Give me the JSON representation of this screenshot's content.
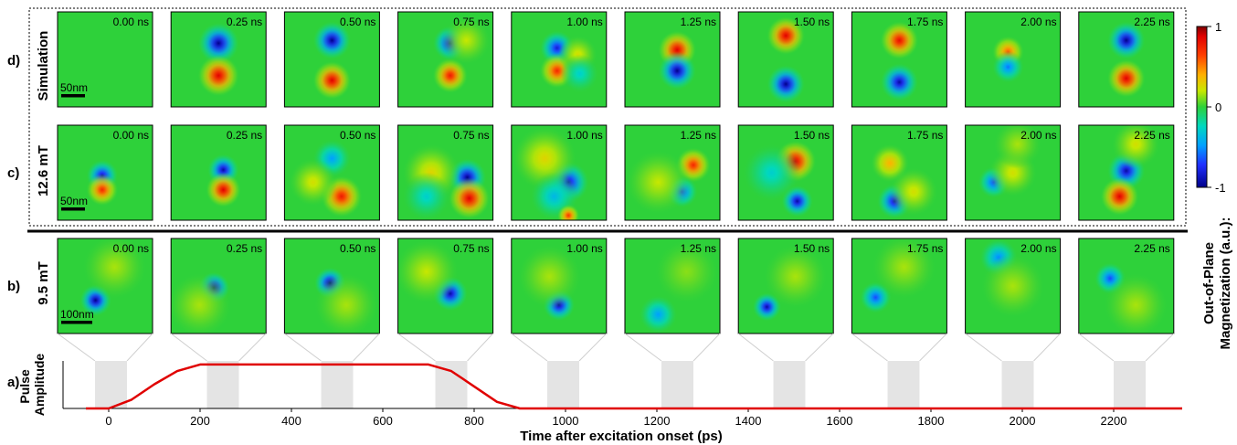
{
  "chart_data": [
    {
      "type": "heatmap",
      "panel": "d)",
      "row_label": "Simulation",
      "scale_bar": "50nm",
      "frames": [
        "0.00 ns",
        "0.25 ns",
        "0.50 ns",
        "0.75 ns",
        "1.00 ns",
        "1.25 ns",
        "1.50 ns",
        "1.75 ns",
        "2.00 ns",
        "2.25 ns"
      ]
    },
    {
      "type": "heatmap",
      "panel": "c)",
      "row_label": "12.6 mT",
      "scale_bar": "50nm",
      "frames": [
        "0.00 ns",
        "0.25 ns",
        "0.50 ns",
        "0.75 ns",
        "1.00 ns",
        "1.25 ns",
        "1.50 ns",
        "1.75 ns",
        "2.00 ns",
        "2.25 ns"
      ]
    },
    {
      "type": "heatmap",
      "panel": "b)",
      "row_label": "9.5 mT",
      "scale_bar": "100nm",
      "frames": [
        "0.00 ns",
        "0.25 ns",
        "0.50 ns",
        "0.75 ns",
        "1.00 ns",
        "1.25 ns",
        "1.50 ns",
        "1.75 ns",
        "2.00 ns",
        "2.25 ns"
      ]
    },
    {
      "type": "line",
      "panel": "a)",
      "ylabel": "Pulse Amplitude",
      "xlabel": "Time after excitation onset (ps)",
      "xlim": [
        -100,
        2350
      ],
      "ylim": [
        0,
        1.08
      ],
      "xticks": [
        0,
        200,
        400,
        600,
        800,
        1000,
        1200,
        1400,
        1600,
        1800,
        2000,
        2200
      ],
      "series": [
        {
          "color": "#e00000",
          "x": [
            -50,
            0,
            50,
            100,
            150,
            200,
            300,
            400,
            500,
            600,
            700,
            750,
            800,
            850,
            900,
            1000,
            1200,
            1400,
            1600,
            1800,
            2000,
            2200,
            2350
          ],
          "values": [
            0,
            0,
            0.2,
            0.55,
            0.85,
            1,
            1,
            1,
            1,
            1,
            1,
            0.85,
            0.5,
            0.15,
            0,
            0,
            0,
            0,
            0,
            0,
            0,
            0,
            0
          ]
        }
      ],
      "gate_windows": [
        [
          -30,
          40
        ],
        [
          215,
          285
        ],
        [
          465,
          535
        ],
        [
          715,
          785
        ],
        [
          960,
          1030
        ],
        [
          1210,
          1280
        ],
        [
          1455,
          1525
        ],
        [
          1705,
          1775
        ],
        [
          1955,
          2025
        ],
        [
          2200,
          2270
        ]
      ]
    },
    {
      "type": "colorbar",
      "label_line1": "Out-of-Plane",
      "label_line2": "Magnetization (a.u.):",
      "ticks": [
        "1",
        "0",
        "-1"
      ],
      "values": [
        1,
        0,
        -1
      ]
    }
  ],
  "colors": {
    "background_green": "#2ed13a",
    "pulse": "#e00000",
    "gate": "#e4e4e4"
  },
  "features": {
    "d": [
      [],
      [
        [
          0.5,
          0.33,
          -1,
          0.13
        ],
        [
          0.5,
          0.67,
          1,
          0.13
        ]
      ],
      [
        [
          0.5,
          0.3,
          -1,
          0.12
        ],
        [
          0.5,
          0.72,
          1,
          0.12
        ]
      ],
      [
        [
          0.55,
          0.33,
          -0.9,
          0.11
        ],
        [
          0.55,
          0.67,
          0.9,
          0.11
        ],
        [
          0.72,
          0.3,
          0.25,
          0.15
        ]
      ],
      [
        [
          0.48,
          0.38,
          -0.85,
          0.11
        ],
        [
          0.48,
          0.62,
          0.85,
          0.11
        ],
        [
          0.7,
          0.45,
          0.3,
          0.12
        ],
        [
          0.72,
          0.65,
          -0.3,
          0.12
        ]
      ],
      [
        [
          0.55,
          0.4,
          1,
          0.12
        ],
        [
          0.55,
          0.62,
          -1,
          0.12
        ]
      ],
      [
        [
          0.5,
          0.25,
          1,
          0.12
        ],
        [
          0.5,
          0.76,
          -1,
          0.12
        ]
      ],
      [
        [
          0.5,
          0.3,
          0.95,
          0.12
        ],
        [
          0.5,
          0.74,
          -0.95,
          0.12
        ]
      ],
      [
        [
          0.45,
          0.42,
          0.7,
          0.1
        ],
        [
          0.45,
          0.58,
          -0.6,
          0.1
        ]
      ],
      [
        [
          0.5,
          0.3,
          -1,
          0.12
        ],
        [
          0.5,
          0.7,
          1,
          0.12
        ]
      ]
    ],
    "c": [
      [
        [
          0.47,
          0.53,
          -0.9,
          0.1
        ],
        [
          0.47,
          0.68,
          0.85,
          0.1
        ]
      ],
      [
        [
          0.55,
          0.47,
          -0.95,
          0.1
        ],
        [
          0.55,
          0.68,
          1,
          0.11
        ]
      ],
      [
        [
          0.5,
          0.35,
          -0.5,
          0.12
        ],
        [
          0.6,
          0.75,
          0.9,
          0.13
        ],
        [
          0.3,
          0.6,
          0.3,
          0.15
        ]
      ],
      [
        [
          0.73,
          0.55,
          -1,
          0.12
        ],
        [
          0.75,
          0.77,
          1,
          0.13
        ],
        [
          0.35,
          0.5,
          0.35,
          0.18
        ],
        [
          0.3,
          0.75,
          -0.3,
          0.15
        ]
      ],
      [
        [
          0.6,
          0.6,
          -0.9,
          0.13
        ],
        [
          0.35,
          0.35,
          0.35,
          0.2
        ],
        [
          0.45,
          0.75,
          -0.4,
          0.15
        ],
        [
          0.6,
          0.95,
          0.8,
          0.07
        ]
      ],
      [
        [
          0.72,
          0.42,
          0.85,
          0.11
        ],
        [
          0.6,
          0.7,
          -0.7,
          0.1
        ],
        [
          0.35,
          0.6,
          0.25,
          0.2
        ]
      ],
      [
        [
          0.6,
          0.38,
          1,
          0.13
        ],
        [
          0.62,
          0.8,
          -0.95,
          0.1
        ],
        [
          0.35,
          0.5,
          -0.3,
          0.18
        ]
      ],
      [
        [
          0.4,
          0.4,
          0.5,
          0.12
        ],
        [
          0.45,
          0.8,
          -0.9,
          0.11
        ],
        [
          0.65,
          0.7,
          0.3,
          0.15
        ]
      ],
      [
        [
          0.3,
          0.6,
          -0.7,
          0.1
        ],
        [
          0.5,
          0.5,
          0.3,
          0.15
        ],
        [
          0.55,
          0.2,
          0.2,
          0.15
        ]
      ],
      [
        [
          0.5,
          0.48,
          -0.95,
          0.12
        ],
        [
          0.43,
          0.75,
          1,
          0.12
        ],
        [
          0.6,
          0.2,
          0.3,
          0.15
        ]
      ]
    ],
    "b": [
      [
        [
          0.4,
          0.65,
          -1,
          0.1
        ],
        [
          0.6,
          0.3,
          0.2,
          0.2
        ]
      ],
      [
        [
          0.45,
          0.52,
          -1,
          0.1
        ],
        [
          0.3,
          0.7,
          0.2,
          0.2
        ]
      ],
      [
        [
          0.48,
          0.47,
          -1,
          0.1
        ],
        [
          0.65,
          0.7,
          0.2,
          0.2
        ]
      ],
      [
        [
          0.55,
          0.58,
          -0.95,
          0.11
        ],
        [
          0.3,
          0.35,
          0.25,
          0.2
        ]
      ],
      [
        [
          0.5,
          0.7,
          -0.95,
          0.1
        ],
        [
          0.4,
          0.4,
          0.2,
          0.2
        ]
      ],
      [
        [
          0.35,
          0.8,
          -0.5,
          0.12
        ],
        [
          0.65,
          0.35,
          0.15,
          0.2
        ]
      ],
      [
        [
          0.3,
          0.72,
          -0.95,
          0.09
        ],
        [
          0.6,
          0.4,
          0.2,
          0.2
        ]
      ],
      [
        [
          0.25,
          0.62,
          -0.7,
          0.1
        ],
        [
          0.55,
          0.3,
          0.2,
          0.2
        ]
      ],
      [
        [
          0.35,
          0.2,
          -0.55,
          0.12
        ],
        [
          0.5,
          0.5,
          0.2,
          0.2
        ]
      ],
      [
        [
          0.33,
          0.42,
          -0.7,
          0.1
        ],
        [
          0.6,
          0.7,
          0.2,
          0.2
        ]
      ]
    ]
  }
}
